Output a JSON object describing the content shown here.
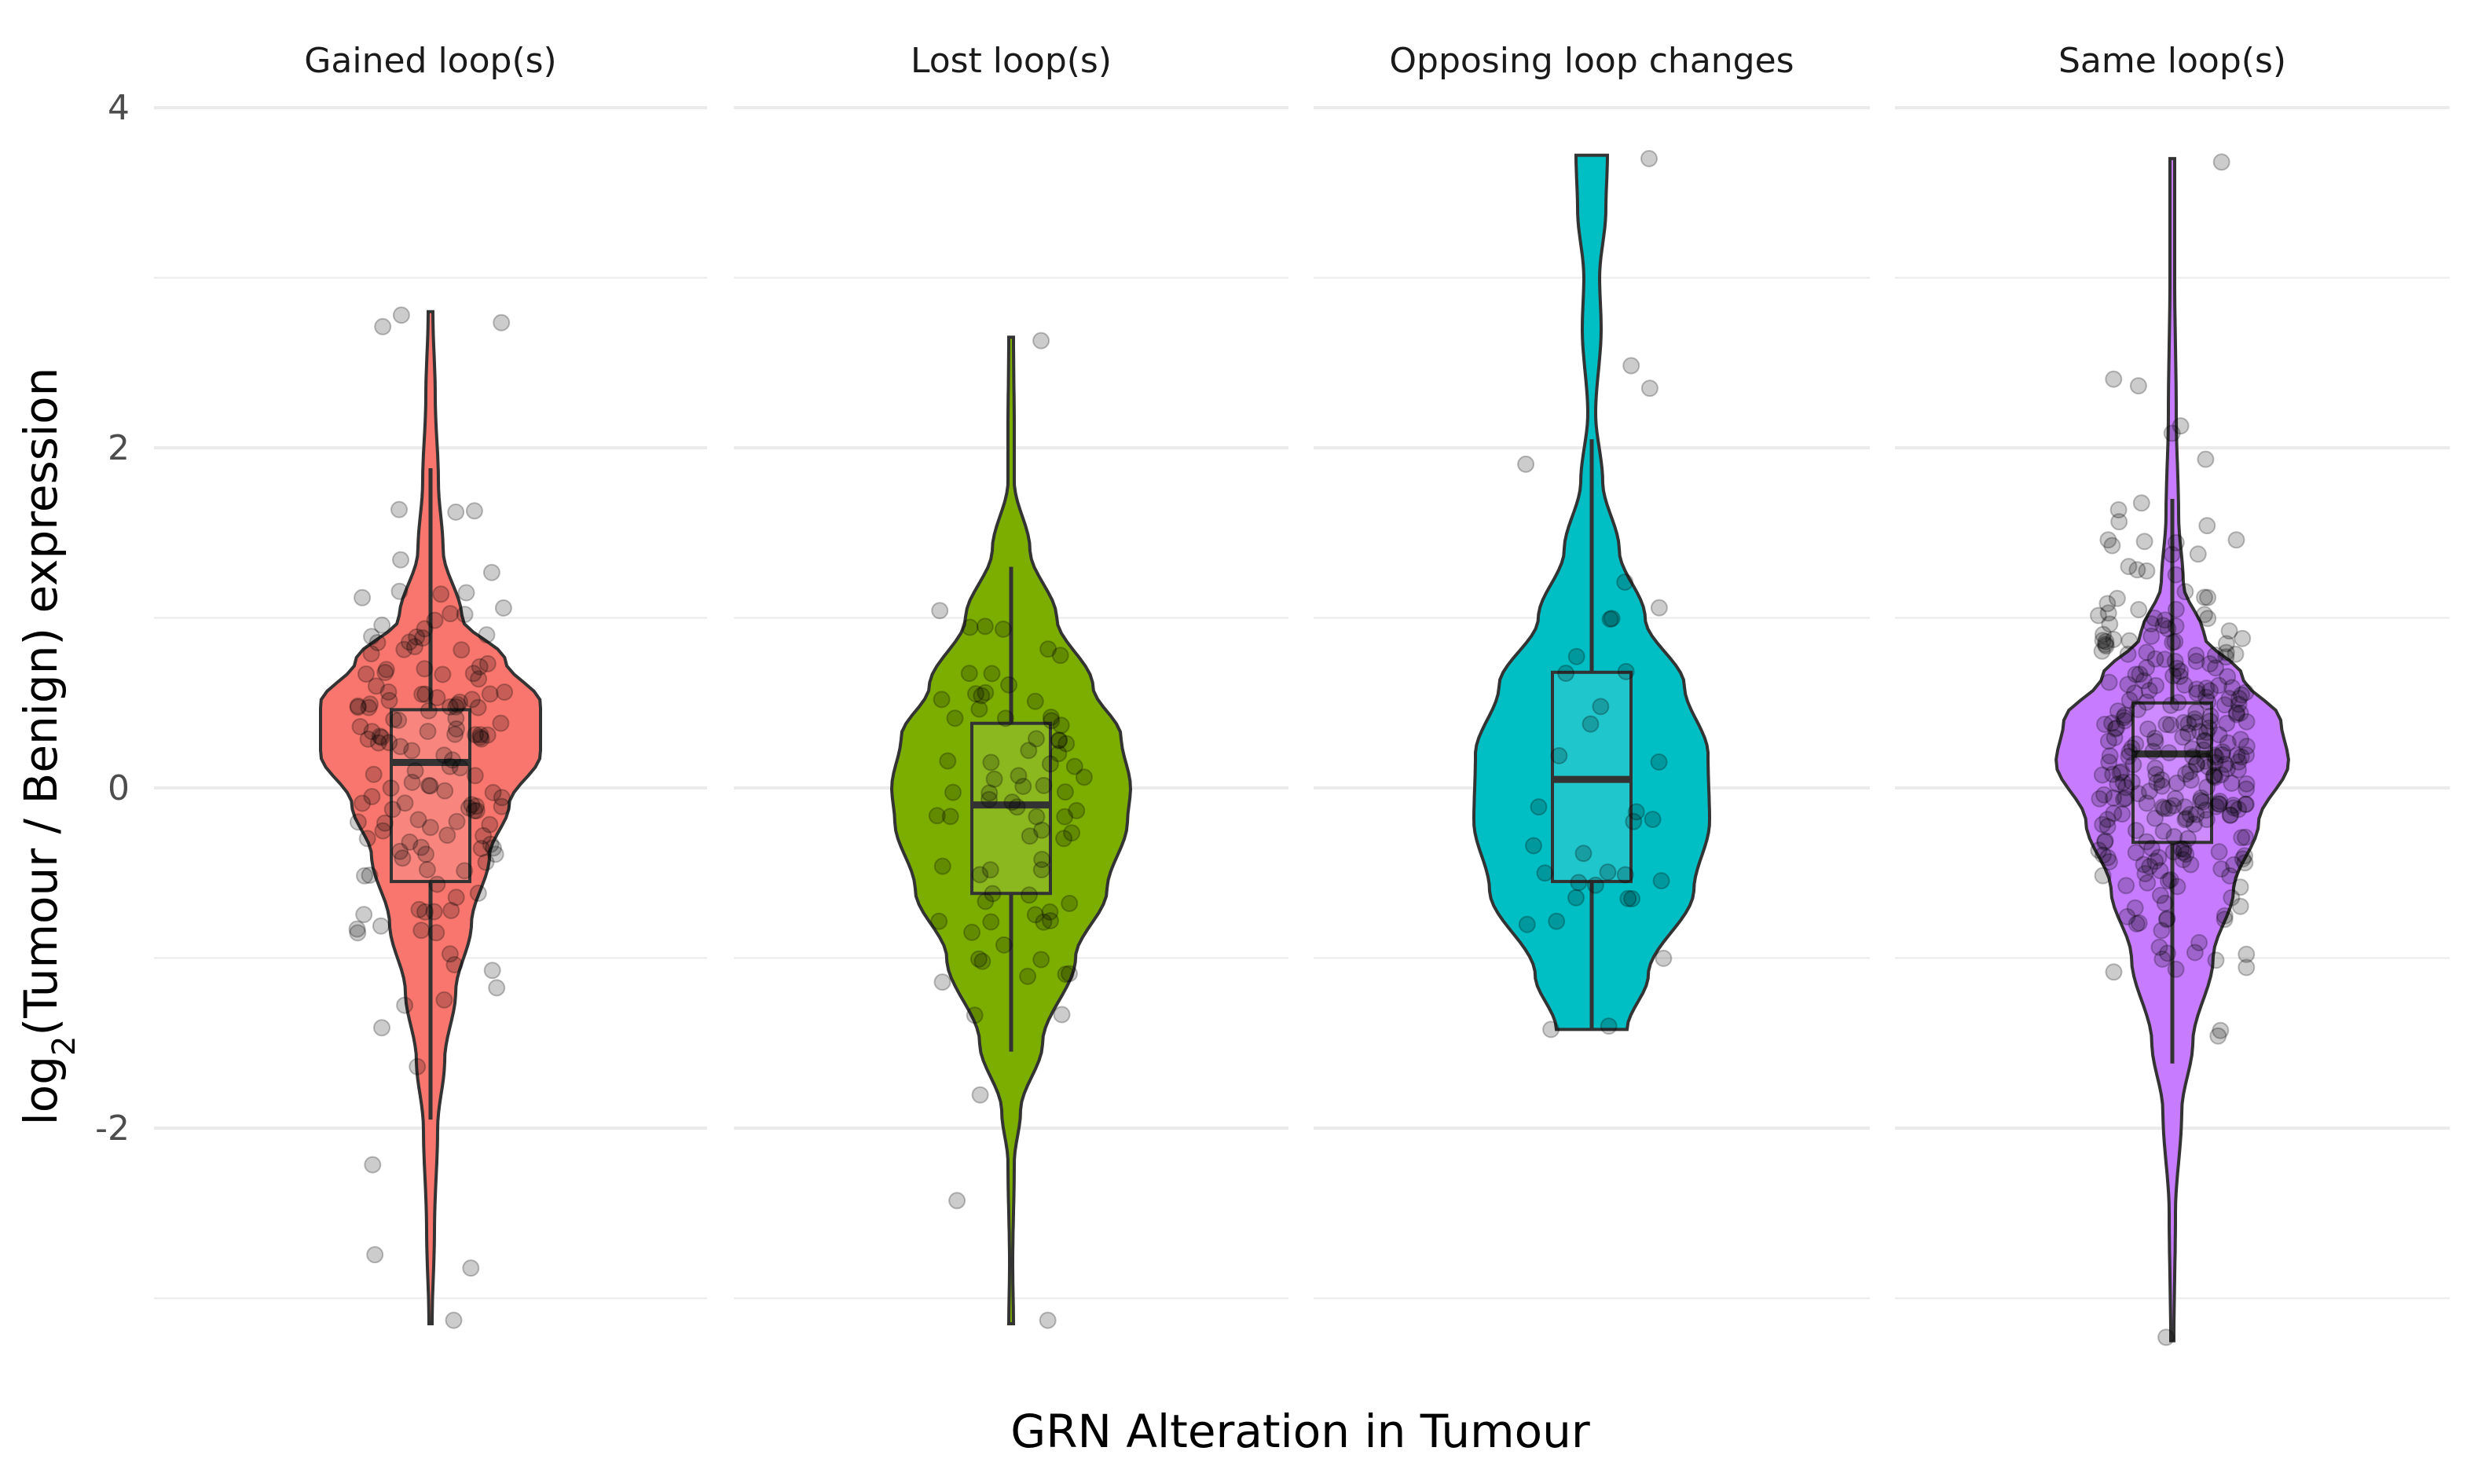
{
  "chart_data": {
    "type": "violin",
    "xlabel": "GRN Alteration in Tumour",
    "ylabel": {
      "prefix": "log",
      "subscript": "2",
      "suffix": "(Tumour / Benign) expression"
    },
    "ylim": [
      -3.4,
      4.2
    ],
    "yticks": [
      -2,
      0,
      2,
      4
    ],
    "ytick_labels": [
      "-2",
      "0",
      "2",
      "4"
    ],
    "grid": true,
    "facets": [
      {
        "label": "Gained loop(s)",
        "color": "#F8766D",
        "box": {
          "lower_whisker": -1.95,
          "q1": -0.55,
          "median": 0.15,
          "q3": 0.46,
          "upper_whisker": 1.88
        },
        "range": [
          -3.15,
          2.8
        ],
        "n_points": 150
      },
      {
        "label": "Lost loop(s)",
        "color": "#7CAE00",
        "box": {
          "lower_whisker": -1.55,
          "q1": -0.62,
          "median": -0.1,
          "q3": 0.38,
          "upper_whisker": 1.3
        },
        "range": [
          -3.15,
          2.65
        ],
        "n_points": 80
      },
      {
        "label": "Opposing loop changes",
        "color": "#00BFC4",
        "box": {
          "lower_whisker": -1.42,
          "q1": -0.55,
          "median": 0.05,
          "q3": 0.68,
          "upper_whisker": 2.05
        },
        "range": [
          -1.42,
          3.72
        ],
        "n_points": 35
      },
      {
        "label": "Same loop(s)",
        "color": "#C77CFF",
        "box": {
          "lower_whisker": -1.62,
          "q1": -0.32,
          "median": 0.2,
          "q3": 0.5,
          "upper_whisker": 1.7
        },
        "range": [
          -3.25,
          3.7
        ],
        "n_points": 300
      }
    ]
  }
}
